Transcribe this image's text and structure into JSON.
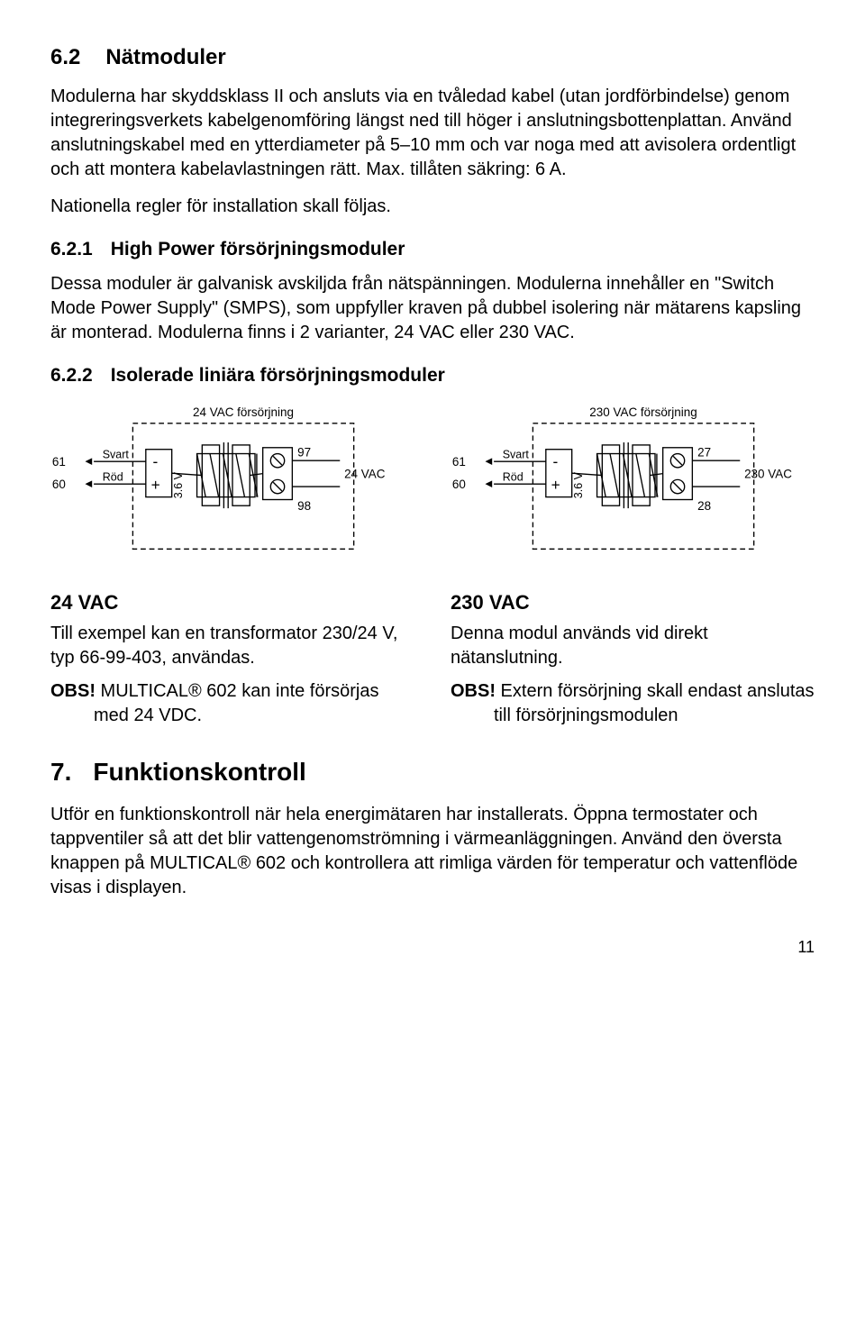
{
  "section62": {
    "num": "6.2",
    "title": "Nätmoduler",
    "p1": "Modulerna har skyddsklass II och ansluts via en tvåledad kabel (utan jordförbindelse) genom integreringsverkets kabelgenomföring längst ned till höger i anslutningsbottenplattan. Använd anslutningskabel med en ytterdiameter på 5–10 mm och var noga med att avisolera ordentligt och att montera kabelavlastningen rätt. Max. tillåten säkring: 6 A.",
    "p2": "Nationella regler för installation skall följas."
  },
  "section621": {
    "num": "6.2.1",
    "title": "High Power försörjningsmoduler",
    "p1": "Dessa moduler är galvanisk avskiljda från nätspänningen. Modulerna innehåller en \"Switch Mode Power Supply\" (SMPS), som uppfyller kraven på dubbel isolering när mätarens kapsling är monterad. Modulerna finns i 2 varianter, 24 VAC eller 230 VAC."
  },
  "section622": {
    "num": "6.2.2",
    "title": "Isolerade liniära försörjningsmoduler"
  },
  "diagram_left": {
    "top_label": "24 VAC försörjning",
    "left_top_num": "61",
    "left_bot_num": "60",
    "left_top_color": "Svart",
    "left_bot_color": "Röd",
    "minus": "-",
    "plus": "+",
    "volt": "3.6 V",
    "right_top_num": "97",
    "right_bot_num": "98",
    "right_label": "24 VAC"
  },
  "diagram_right": {
    "top_label": "230 VAC försörjning",
    "left_top_num": "61",
    "left_bot_num": "60",
    "left_top_color": "Svart",
    "left_bot_color": "Röd",
    "minus": "-",
    "plus": "+",
    "volt": "3.6 V",
    "right_top_num": "27",
    "right_bot_num": "28",
    "right_label": "230 VAC"
  },
  "col_left": {
    "title": "24 VAC",
    "body": "Till exempel kan en transformator 230/24 V, typ 66-99-403, användas.",
    "obs_label": "OBS!",
    "obs_body": " MULTICAL® 602 kan inte försörjas med 24 VDC."
  },
  "col_right": {
    "title": "230 VAC",
    "body": "Denna modul används vid direkt nätanslutning.",
    "obs_label": "OBS!",
    "obs_body": " Extern försörjning skall endast anslutas till försörjningsmodulen"
  },
  "section7": {
    "num": "7.",
    "title": "Funktionskontroll",
    "p1": "Utför en funktionskontroll när hela energimätaren har installerats. Öppna termostater och tappventiler så att det blir vattengenomströmning i värmeanläggningen. Använd den översta knappen på MULTICAL® 602 och kontrollera att rimliga värden för temperatur och vattenflöde visas i displayen."
  },
  "page_num": "11",
  "style": {
    "stroke": "#000000",
    "stroke_width": 1.4,
    "font_family": "Arial, Helvetica, sans-serif"
  }
}
